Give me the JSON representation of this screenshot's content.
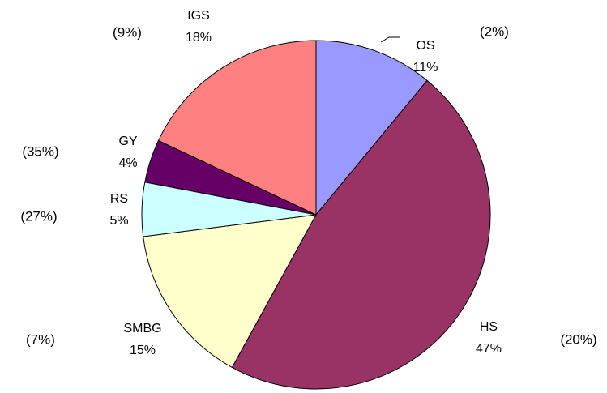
{
  "chart_data": {
    "type": "pie",
    "categories": [
      "OS",
      "HS",
      "SMBG",
      "RS",
      "GY",
      "IGS"
    ],
    "values": [
      11,
      47,
      15,
      5,
      4,
      18
    ],
    "value_labels": [
      "11%",
      "47%",
      "15%",
      "5%",
      "4%",
      "18%"
    ],
    "colors": [
      "#9999ff",
      "#993366",
      "#ffffcc",
      "#ccffff",
      "#660066",
      "#ff8080"
    ],
    "annotations": [
      "(2%)",
      "(20%)",
      "(7%)",
      "(27%)",
      "(35%)",
      "(9%)"
    ]
  }
}
